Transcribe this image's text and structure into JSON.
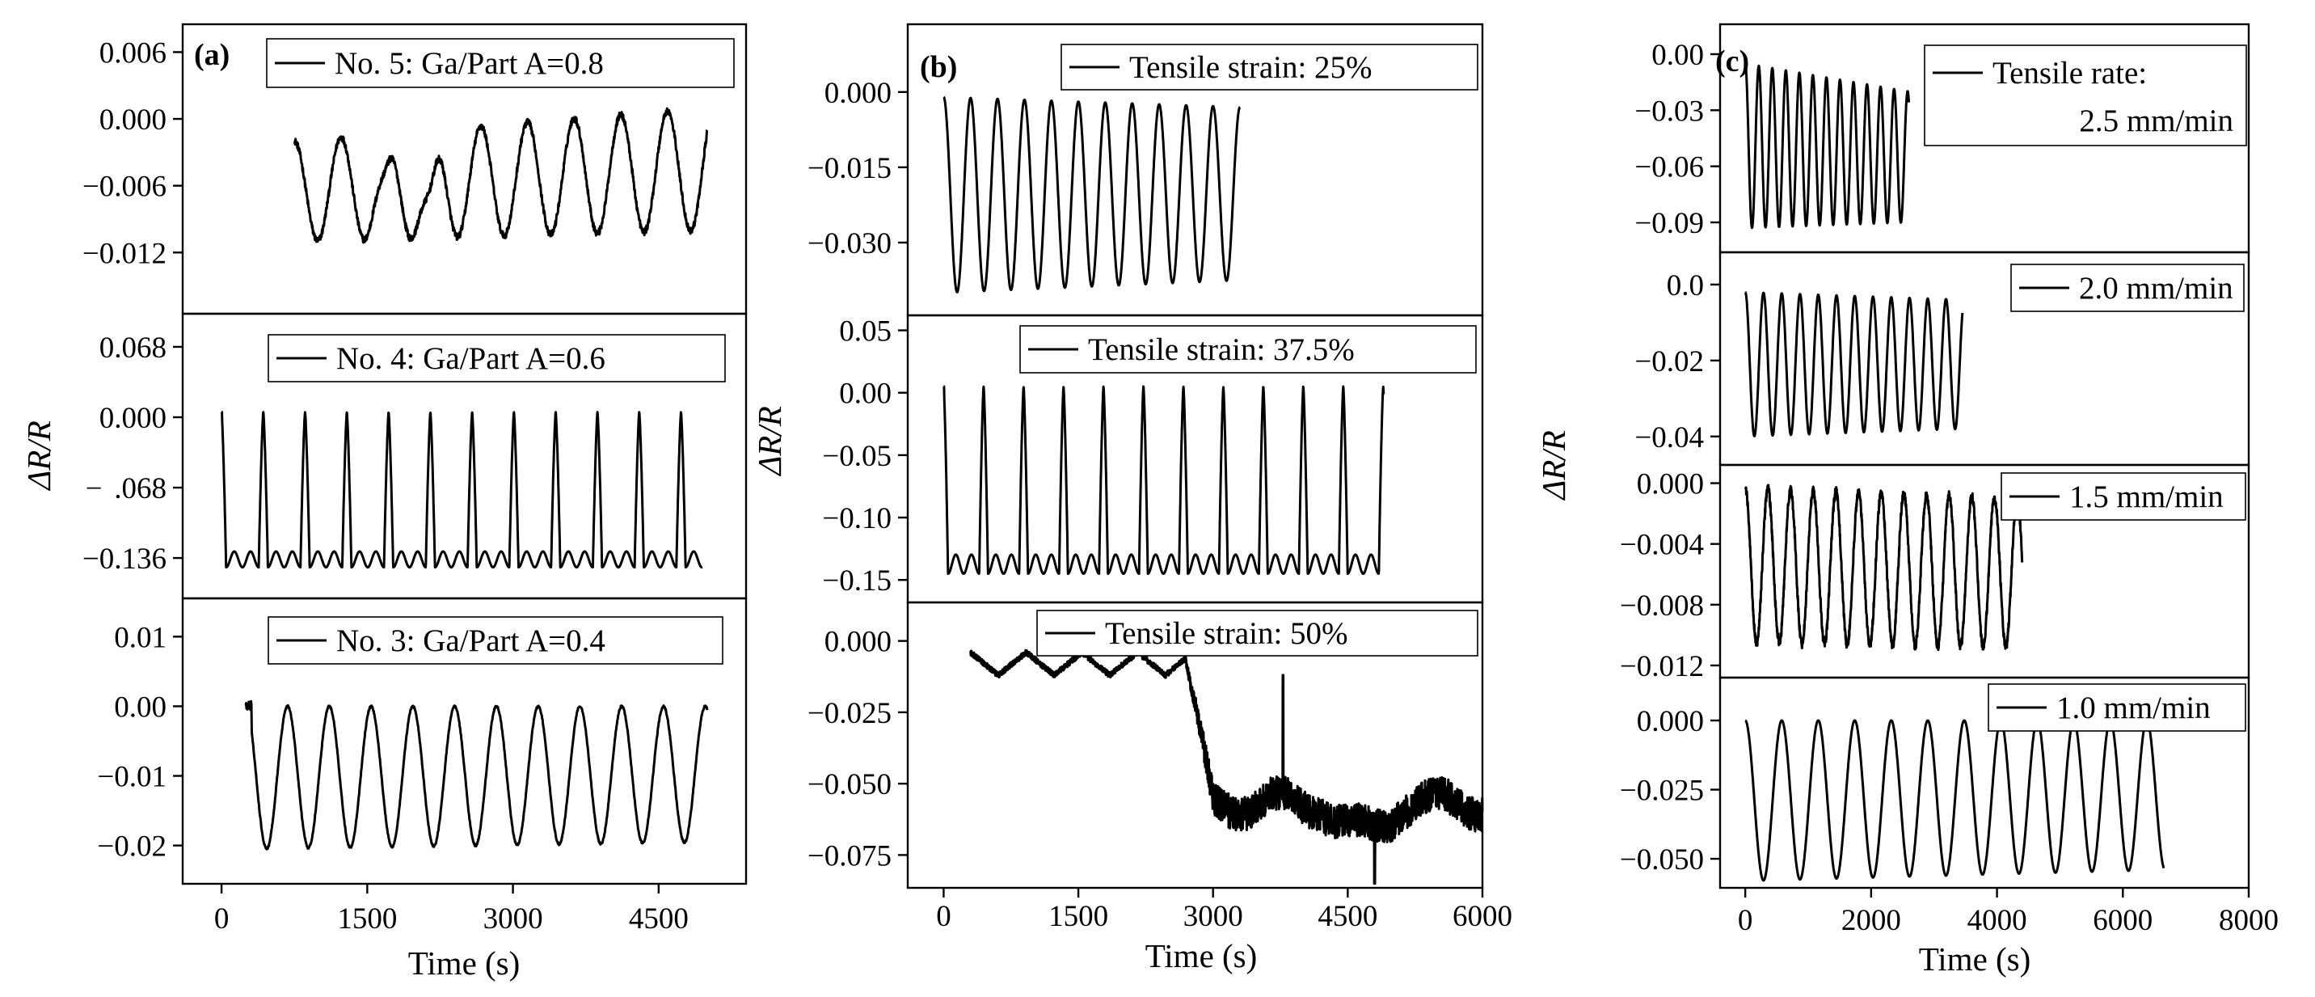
{
  "figure": {
    "ylabel": "ΔR/R",
    "xlabel": "Time (s)"
  },
  "chart_data": [
    {
      "type": "line",
      "column": "a",
      "panel_label": "(a)",
      "xlabel": "Time (s)",
      "ylabel": "ΔR/R",
      "xlim": [
        -400,
        5400
      ],
      "xticks": [
        0,
        1500,
        3000,
        4500
      ],
      "xtick_labels": [
        "0",
        "1500",
        "3000",
        "4500"
      ],
      "rows": [
        {
          "legend": "No. 5: Ga/Part A=0.8",
          "ylim": [
            -0.0175,
            0.0085
          ],
          "yticks": [
            0.006,
            0.0,
            -0.006,
            -0.012
          ],
          "ytick_labels": [
            "0.006",
            "0.000",
            "−0.006",
            "−0.012"
          ],
          "series": [
            {
              "name": "No. 5: Ga/Part A=0.8",
              "generator": "cycles",
              "x_start": 750,
              "x_end": 5000,
              "period": 480,
              "cycles": 8.85,
              "peak": -0.002,
              "peak_end": 0.001,
              "trough": -0.011,
              "trough_end": -0.01,
              "start_phase": 0.0,
              "noise": 0.0006,
              "dips": [
                {
                  "x": 1680,
                  "depth": 0.003
                },
                {
                  "x": 2150,
                  "depth": 0.0045
                }
              ]
            }
          ]
        },
        {
          "legend": "No. 4: Ga/Part A=0.6",
          "ylim": [
            -0.175,
            0.1
          ],
          "yticks": [
            0.068,
            0.0,
            -0.068,
            -0.136
          ],
          "ytick_labels": [
            "0.068",
            "0.000",
            "−  .068",
            "−0.136"
          ],
          "series": [
            {
              "name": "No. 4: Ga/Part A=0.6",
              "generator": "spikes",
              "x_start": 0,
              "x_end": 4950,
              "period": 430,
              "cycles": 11,
              "peak": 0.005,
              "trough": -0.145,
              "shoulder": -0.128,
              "first_peak": 0.005,
              "last_peak": 0.01
            }
          ]
        },
        {
          "legend": "No. 3: Ga/Part A=0.4",
          "ylim": [
            -0.0255,
            0.0155
          ],
          "yticks": [
            0.01,
            0.0,
            -0.01,
            -0.02
          ],
          "ytick_labels": [
            "0.01",
            "0.00",
            "−0.01",
            "−0.02"
          ],
          "series": [
            {
              "name": "No. 3: Ga/Part A=0.4",
              "generator": "cycles",
              "x_start": 250,
              "x_end": 5000,
              "period": 430,
              "cycles": 10.7,
              "peak": 0.0,
              "trough": -0.0205,
              "trough_end": -0.0195,
              "start_phase": 0.0,
              "noise": 0.0003,
              "drop_start": true
            }
          ]
        }
      ]
    },
    {
      "type": "line",
      "column": "b",
      "panel_label": "(b)",
      "xlabel": "Time (s)",
      "ylabel": "ΔR/R",
      "xlim": [
        -400,
        6000
      ],
      "xticks": [
        0,
        1500,
        3000,
        4500,
        6000
      ],
      "xtick_labels": [
        "0",
        "1500",
        "3000",
        "4500",
        "6000"
      ],
      "rows": [
        {
          "legend": "Tensile strain: 25%",
          "ylim": [
            -0.0445,
            0.0135
          ],
          "yticks": [
            0.0,
            -0.015,
            -0.03
          ],
          "ytick_labels": [
            "0.000",
            "−0.015",
            "−0.030"
          ],
          "series": [
            {
              "name": "Tensile strain: 25%",
              "generator": "cycles",
              "x_start": 0,
              "x_end": 3300,
              "period": 300,
              "cycles": 11,
              "peak": -0.001,
              "peak_end": -0.003,
              "trough": -0.04,
              "trough_end": -0.0375,
              "start_phase": 0.0,
              "noise": 0.0
            }
          ]
        },
        {
          "legend": "Tensile strain: 37.5%",
          "ylim": [
            -0.168,
            0.062
          ],
          "yticks": [
            0.05,
            0.0,
            -0.05,
            -0.1,
            -0.15
          ],
          "ytick_labels": [
            "0.05",
            "0.00",
            "−0.05",
            "−0.10",
            "−0.15"
          ],
          "series": [
            {
              "name": "Tensile strain: 37.5%",
              "generator": "spikes",
              "x_start": 0,
              "x_end": 4900,
              "period": 445,
              "cycles": 11,
              "peak": 0.005,
              "trough": -0.145,
              "shoulder": -0.128,
              "first_peak": 0.005,
              "last_peak": 0.01
            }
          ]
        },
        {
          "legend": "Tensile strain: 50%",
          "ylim": [
            -0.0865,
            0.0135
          ],
          "yticks": [
            0.0,
            -0.025,
            -0.05,
            -0.075
          ],
          "ytick_labels": [
            "0.000",
            "−0.025",
            "−0.050",
            "−0.075"
          ],
          "series": [
            {
              "name": "Tensile strain: 50%",
              "generator": "degrade",
              "x_start": 300,
              "x_end": 6000,
              "period": 620,
              "step_x": 2700,
              "pre_level": -0.008,
              "pre_amp": 0.004,
              "post_level": -0.06,
              "noise": 0.006,
              "spike_x": 3780,
              "spike_y": -0.012,
              "dip_x": 4800,
              "dip_y": -0.085
            }
          ]
        }
      ]
    },
    {
      "type": "line",
      "column": "c",
      "panel_label": "(c)",
      "xlabel": "Time (s)",
      "ylabel": "ΔR/R",
      "xlim": [
        -400,
        8000
      ],
      "xticks": [
        0,
        2000,
        4000,
        6000,
        8000
      ],
      "xtick_labels": [
        "0",
        "2000",
        "4000",
        "6000",
        "8000"
      ],
      "rows": [
        {
          "legend": "Tensile rate:",
          "legend_line2": "2.5 mm/min",
          "ylim": [
            -0.106,
            0.016
          ],
          "yticks": [
            0.0,
            -0.03,
            -0.06,
            -0.09
          ],
          "ytick_labels": [
            "0.00",
            "−0.03",
            "−0.06",
            "−0.09"
          ],
          "series": [
            {
              "name": "2.5 mm/min",
              "generator": "cycles",
              "x_start": 0,
              "x_end": 2600,
              "period": 215,
              "cycles": 12,
              "peak": -0.005,
              "peak_end": -0.02,
              "trough": -0.093,
              "trough_end": -0.09,
              "start_phase": 0.0,
              "noise": 0.0
            }
          ]
        },
        {
          "legend": "2.0 mm/min",
          "ylim": [
            -0.0475,
            0.0085
          ],
          "yticks": [
            0.0,
            -0.02,
            -0.04
          ],
          "ytick_labels": [
            "0.0",
            "−0.02",
            "−0.04"
          ],
          "series": [
            {
              "name": "2.0 mm/min",
              "generator": "cycles",
              "x_start": 0,
              "x_end": 3450,
              "period": 290,
              "cycles": 12,
              "peak": -0.002,
              "peak_end": -0.004,
              "trough": -0.04,
              "trough_end": -0.038,
              "start_phase": 0.0,
              "noise": 0.0
            }
          ]
        },
        {
          "legend": "1.5 mm/min",
          "ylim": [
            -0.0128,
            0.0012
          ],
          "yticks": [
            0.0,
            -0.004,
            -0.008,
            -0.012
          ],
          "ytick_labels": [
            "0.000",
            "−0.004",
            "−0.008",
            "−0.012"
          ],
          "series": [
            {
              "name": "1.5 mm/min",
              "generator": "cycles",
              "x_start": 0,
              "x_end": 4400,
              "period": 360,
              "cycles": 12,
              "peak": -0.0003,
              "peak_end": -0.001,
              "trough": -0.0105,
              "trough_end": -0.0108,
              "start_phase": 0.0,
              "noise": 0.0006
            }
          ]
        },
        {
          "legend": "1.0 mm/min",
          "ylim": [
            -0.0605,
            0.0155
          ],
          "yticks": [
            0.0,
            -0.025,
            -0.05
          ],
          "ytick_labels": [
            "0.000",
            "−0.025",
            "−0.050"
          ],
          "series": [
            {
              "name": "1.0 mm/min",
              "generator": "cycles",
              "x_start": 0,
              "x_end": 6650,
              "period": 580,
              "cycles": 11.4,
              "peak": 0.0,
              "trough": -0.058,
              "trough_end": -0.054,
              "start_phase": 0.0,
              "noise": 0.0
            }
          ]
        }
      ]
    }
  ]
}
